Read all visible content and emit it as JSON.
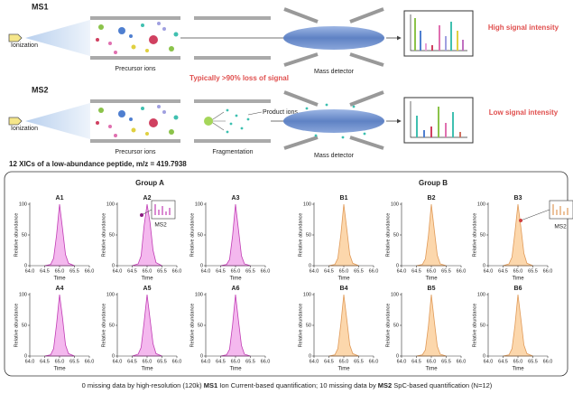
{
  "ms1": {
    "label": "MS1",
    "ionization": "Ionization",
    "precursor": "Precursor ions",
    "detector": "Mass detector",
    "result": "High signal intensity"
  },
  "ms2": {
    "label": "MS2",
    "ionization": "Ionization",
    "precursor": "Precursor ions",
    "loss": "Typically >90% loss of signal",
    "product": "Product ions",
    "fragmentation": "Fragmentation",
    "detector": "Mass detector",
    "result": "Low signal intensity"
  },
  "xic_title": "12 XICs of a low-abundance peptide, m/z = 419.7938",
  "groups": [
    {
      "title": "Group A",
      "color": "#9b2c9b"
    },
    {
      "title": "Group B",
      "color": "#d4861c"
    }
  ],
  "chart_data": [
    {
      "type": "area",
      "title": "A1",
      "color": "#c03cb4",
      "fill_color": "#f4b8ee",
      "x": [
        64.5,
        64.7,
        64.8,
        64.9,
        65.0,
        65.1,
        65.2,
        65.3,
        65.5
      ],
      "values": [
        0,
        2,
        12,
        50,
        100,
        60,
        18,
        4,
        0
      ],
      "xlim": [
        64,
        66
      ],
      "ylim": [
        0,
        100
      ],
      "xticks": [
        {
          "value": 64,
          "label": "64.0"
        },
        64.5,
        {
          "value": 65,
          "label": "65.0"
        },
        65.5,
        {
          "value": 66,
          "label": "66.0"
        }
      ],
      "yticks": [
        0,
        50,
        100
      ],
      "xlabel": "Time",
      "ylabel": "Relative abundance"
    },
    {
      "type": "area",
      "title": "A2",
      "annotation": "MS2",
      "color": "#c03cb4",
      "fill_color": "#f4b8ee",
      "x": [
        64.5,
        64.7,
        64.8,
        64.9,
        65.0,
        65.1,
        65.2,
        65.3,
        65.5
      ],
      "values": [
        0,
        3,
        16,
        65,
        100,
        70,
        25,
        5,
        0
      ],
      "xlim": [
        64,
        66
      ],
      "ylim": [
        0,
        100
      ],
      "xticks": [
        {
          "value": 64,
          "label": "64.0"
        },
        64.5,
        {
          "value": 65,
          "label": "65.0"
        },
        65.5,
        {
          "value": 66,
          "label": "66.0"
        }
      ],
      "yticks": [
        0,
        50,
        100
      ],
      "xlabel": "Time",
      "ylabel": "Relative abundance"
    },
    {
      "type": "area",
      "title": "A3",
      "color": "#c03cb4",
      "fill_color": "#f4b8ee",
      "x": [
        64.5,
        64.7,
        64.8,
        64.9,
        65.0,
        65.1,
        65.2,
        65.3,
        65.5
      ],
      "values": [
        0,
        2,
        10,
        48,
        100,
        58,
        16,
        3,
        0
      ],
      "xlim": [
        64,
        66
      ],
      "ylim": [
        0,
        100
      ],
      "xticks": [
        {
          "value": 64,
          "label": "64.0"
        },
        64.5,
        {
          "value": 65,
          "label": "65.0"
        },
        65.5,
        {
          "value": 66,
          "label": "66.0"
        }
      ],
      "yticks": [
        0,
        50,
        100
      ],
      "xlabel": "Time",
      "ylabel": "Relative abundance"
    },
    {
      "type": "area",
      "title": "A4",
      "color": "#c03cb4",
      "fill_color": "#f4b8ee",
      "x": [
        64.5,
        64.7,
        64.8,
        64.9,
        65.0,
        65.1,
        65.2,
        65.3,
        65.5
      ],
      "values": [
        0,
        2,
        12,
        52,
        100,
        62,
        18,
        4,
        0
      ],
      "xlim": [
        64,
        66
      ],
      "ylim": [
        0,
        100
      ],
      "xticks": [
        {
          "value": 64,
          "label": "64.0"
        },
        64.5,
        {
          "value": 65,
          "label": "65.0"
        },
        65.5,
        {
          "value": 66,
          "label": "66.0"
        }
      ],
      "yticks": [
        0,
        50,
        100
      ],
      "xlabel": "Time",
      "ylabel": "Relative abundance"
    },
    {
      "type": "area",
      "title": "A5",
      "color": "#c03cb4",
      "fill_color": "#f4b8ee",
      "x": [
        64.5,
        64.7,
        64.8,
        64.9,
        65.0,
        65.1,
        65.2,
        65.3,
        65.5
      ],
      "values": [
        0,
        3,
        14,
        55,
        100,
        60,
        20,
        4,
        0
      ],
      "xlim": [
        64,
        66
      ],
      "ylim": [
        0,
        100
      ],
      "xticks": [
        {
          "value": 64,
          "label": "64.0"
        },
        64.5,
        {
          "value": 65,
          "label": "65.0"
        },
        65.5,
        {
          "value": 66,
          "label": "66.0"
        }
      ],
      "yticks": [
        0,
        50,
        100
      ],
      "xlabel": "Time",
      "ylabel": "Relative abundance"
    },
    {
      "type": "area",
      "title": "A6",
      "color": "#c03cb4",
      "fill_color": "#f4b8ee",
      "x": [
        64.5,
        64.7,
        64.8,
        64.9,
        65.0,
        65.1,
        65.2,
        65.3,
        65.5
      ],
      "values": [
        0,
        2,
        11,
        50,
        100,
        57,
        17,
        3,
        0
      ],
      "xlim": [
        64,
        66
      ],
      "ylim": [
        0,
        100
      ],
      "xticks": [
        {
          "value": 64,
          "label": "64.0"
        },
        64.5,
        {
          "value": 65,
          "label": "65.0"
        },
        65.5,
        {
          "value": 66,
          "label": "66.0"
        }
      ],
      "yticks": [
        0,
        50,
        100
      ],
      "xlabel": "Time",
      "ylabel": "Relative abundance"
    },
    {
      "type": "area",
      "title": "B1",
      "color": "#e09a58",
      "fill_color": "#fcd7ac",
      "x": [
        64.5,
        64.7,
        64.8,
        64.9,
        65.0,
        65.1,
        65.2,
        65.3,
        65.5
      ],
      "values": [
        0,
        2,
        12,
        50,
        100,
        60,
        18,
        4,
        0
      ],
      "xlim": [
        64,
        66
      ],
      "ylim": [
        0,
        100
      ],
      "xticks": [
        {
          "value": 64,
          "label": "64.0"
        },
        64.5,
        {
          "value": 65,
          "label": "65.0"
        },
        65.5,
        {
          "value": 66,
          "label": "66.0"
        }
      ],
      "yticks": [
        0,
        50,
        100
      ],
      "xlabel": "Time",
      "ylabel": "Relative abundance"
    },
    {
      "type": "area",
      "title": "B2",
      "color": "#e09a58",
      "fill_color": "#fcd7ac",
      "x": [
        64.5,
        64.7,
        64.8,
        64.9,
        65.0,
        65.1,
        65.2,
        65.3,
        65.5
      ],
      "values": [
        0,
        2,
        11,
        48,
        100,
        58,
        17,
        3,
        0
      ],
      "xlim": [
        64,
        66
      ],
      "ylim": [
        0,
        100
      ],
      "xticks": [
        {
          "value": 64,
          "label": "64.0"
        },
        64.5,
        {
          "value": 65,
          "label": "65.0"
        },
        65.5,
        {
          "value": 66,
          "label": "66.0"
        }
      ],
      "yticks": [
        0,
        50,
        100
      ],
      "xlabel": "Time",
      "ylabel": "Relative abundance"
    },
    {
      "type": "area",
      "title": "B3",
      "annotation": "MS2",
      "color": "#e09a58",
      "fill_color": "#fcd7ac",
      "x": [
        64.5,
        64.7,
        64.8,
        64.9,
        65.0,
        65.1,
        65.2,
        65.3,
        65.5
      ],
      "values": [
        0,
        3,
        14,
        55,
        100,
        62,
        20,
        4,
        0
      ],
      "xlim": [
        64,
        66
      ],
      "ylim": [
        0,
        100
      ],
      "xticks": [
        {
          "value": 64,
          "label": "64.0"
        },
        64.5,
        {
          "value": 65,
          "label": "65.0"
        },
        65.5,
        {
          "value": 66,
          "label": "66.0"
        }
      ],
      "yticks": [
        0,
        50,
        100
      ],
      "xlabel": "Time",
      "ylabel": "Relative abundance"
    },
    {
      "type": "area",
      "title": "B4",
      "color": "#e09a58",
      "fill_color": "#fcd7ac",
      "x": [
        64.5,
        64.7,
        64.8,
        64.9,
        65.0,
        65.1,
        65.2,
        65.3,
        65.5
      ],
      "values": [
        0,
        2,
        12,
        52,
        100,
        60,
        18,
        4,
        0
      ],
      "xlim": [
        64,
        66
      ],
      "ylim": [
        0,
        100
      ],
      "xticks": [
        {
          "value": 64,
          "label": "64.0"
        },
        64.5,
        {
          "value": 65,
          "label": "65.0"
        },
        65.5,
        {
          "value": 66,
          "label": "66.0"
        }
      ],
      "yticks": [
        0,
        50,
        100
      ],
      "xlabel": "Time",
      "ylabel": "Relative abundance"
    },
    {
      "type": "area",
      "title": "B5",
      "color": "#e09a58",
      "fill_color": "#fcd7ac",
      "x": [
        64.5,
        64.7,
        64.8,
        64.9,
        65.0,
        65.1,
        65.2,
        65.3,
        65.5
      ],
      "values": [
        0,
        2,
        10,
        48,
        100,
        57,
        16,
        3,
        0
      ],
      "xlim": [
        64,
        66
      ],
      "ylim": [
        0,
        100
      ],
      "xticks": [
        {
          "value": 64,
          "label": "64.0"
        },
        64.5,
        {
          "value": 65,
          "label": "65.0"
        },
        65.5,
        {
          "value": 66,
          "label": "66.0"
        }
      ],
      "yticks": [
        0,
        50,
        100
      ],
      "xlabel": "Time",
      "ylabel": "Relative abundance"
    },
    {
      "type": "area",
      "title": "B6",
      "color": "#e09a58",
      "fill_color": "#fcd7ac",
      "x": [
        64.5,
        64.7,
        64.8,
        64.9,
        65.0,
        65.1,
        65.2,
        65.3,
        65.5
      ],
      "values": [
        0,
        2,
        12,
        50,
        100,
        60,
        18,
        4,
        0
      ],
      "xlim": [
        64,
        66
      ],
      "ylim": [
        0,
        100
      ],
      "xticks": [
        {
          "value": 64,
          "label": "64.0"
        },
        64.5,
        {
          "value": 65,
          "label": "65.0"
        },
        65.5,
        {
          "value": 66,
          "label": "66.0"
        }
      ],
      "yticks": [
        0,
        50,
        100
      ],
      "xlabel": "Time",
      "ylabel": "Relative abundance"
    }
  ],
  "footer": [
    "0 missing data by high-resolution (120k) ",
    "MS1",
    " Ion Current-based quantification; 10 missing data by ",
    "MS2",
    " SpC-based quantification (N=12)"
  ]
}
